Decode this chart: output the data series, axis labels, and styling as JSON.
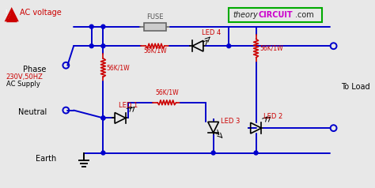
{
  "bg_color": "#e8e8e8",
  "wire_color": "#0000cc",
  "component_color": "#cc0000",
  "fuse_label": "FUSE",
  "brand_theory": "theory",
  "brand_circuit": "CIRCUIT",
  "brand_com": ".com",
  "ac_voltage_label": "AC voltage",
  "supply_label_1": "230V,50HZ",
  "supply_label_2": "AC Supply",
  "phase_label": "Phase",
  "neutral_label": "Neutral",
  "earth_label": "Earth",
  "to_load_label": "To Load",
  "r1_label": "56K/1W",
  "r2_label": "56K/1W",
  "r3_label": "56K/1W",
  "r4_label": "56K/1W",
  "led1_label": "LED 1",
  "led2_label": "LED 2",
  "led3_label": "LED 3",
  "led4_label": "LED 4",
  "fig_width": 4.74,
  "fig_height": 2.38,
  "dpi": 100
}
